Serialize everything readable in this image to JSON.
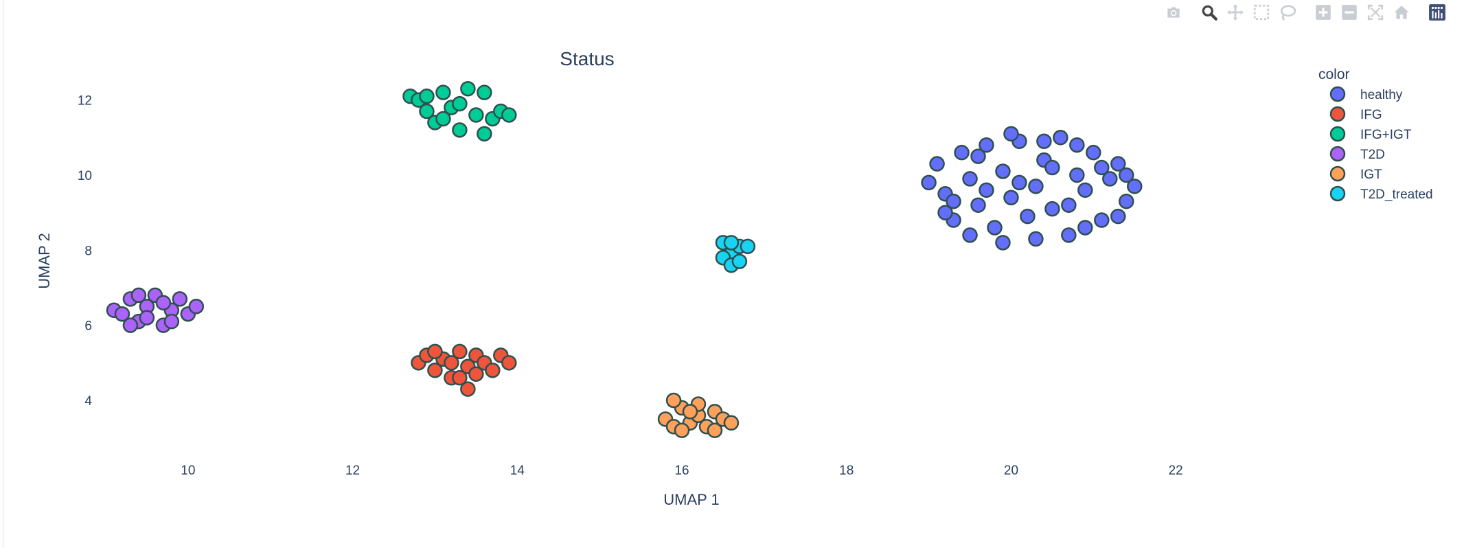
{
  "modebar": {
    "buttons": [
      {
        "name": "camera-icon",
        "label": "Download plot as a png"
      },
      {
        "name": "zoom-icon",
        "label": "Zoom"
      },
      {
        "name": "pan-icon",
        "label": "Pan"
      },
      {
        "name": "box-select-icon",
        "label": "Box Select"
      },
      {
        "name": "lasso-select-icon",
        "label": "Lasso Select"
      },
      {
        "name": "zoom-in-icon",
        "label": "Zoom in"
      },
      {
        "name": "zoom-out-icon",
        "label": "Zoom out"
      },
      {
        "name": "autoscale-icon",
        "label": "Autoscale"
      },
      {
        "name": "reset-axes-icon",
        "label": "Reset axes"
      },
      {
        "name": "plotly-logo-icon",
        "label": "Produced with Plotly"
      }
    ],
    "icon_color": "#c9cdd4",
    "active_color": "#444444"
  },
  "chart_data": {
    "type": "scatter",
    "title": "Status",
    "xlabel": "UMAP 1",
    "ylabel": "UMAP 2",
    "xlim": [
      8.8,
      23.4
    ],
    "ylim": [
      2.5,
      13.2
    ],
    "xticks": [
      10,
      12,
      14,
      16,
      18,
      20,
      22
    ],
    "yticks": [
      4,
      6,
      8,
      10,
      12
    ],
    "grid": false,
    "legend": {
      "title": "color",
      "position": "top-right"
    },
    "marker_outline": "#2f4f4f",
    "series": [
      {
        "name": "healthy",
        "color": "#636efa",
        "points": [
          [
            19.0,
            9.8
          ],
          [
            19.1,
            10.3
          ],
          [
            19.2,
            9.5
          ],
          [
            19.3,
            8.8
          ],
          [
            19.4,
            10.6
          ],
          [
            19.5,
            9.9
          ],
          [
            19.6,
            9.2
          ],
          [
            19.7,
            10.8
          ],
          [
            19.8,
            8.6
          ],
          [
            19.9,
            10.1
          ],
          [
            20.0,
            9.4
          ],
          [
            20.1,
            10.9
          ],
          [
            20.2,
            8.9
          ],
          [
            20.3,
            9.7
          ],
          [
            20.4,
            10.4
          ],
          [
            20.5,
            9.1
          ],
          [
            20.6,
            11.0
          ],
          [
            20.7,
            8.4
          ],
          [
            20.8,
            10.0
          ],
          [
            20.9,
            9.6
          ],
          [
            21.0,
            10.6
          ],
          [
            21.1,
            8.8
          ],
          [
            21.2,
            9.9
          ],
          [
            21.3,
            10.3
          ],
          [
            21.4,
            9.3
          ],
          [
            19.3,
            9.3
          ],
          [
            19.5,
            8.4
          ],
          [
            19.7,
            9.6
          ],
          [
            19.9,
            8.2
          ],
          [
            20.1,
            9.8
          ],
          [
            20.3,
            8.3
          ],
          [
            20.5,
            10.2
          ],
          [
            20.7,
            9.2
          ],
          [
            20.9,
            8.6
          ],
          [
            21.1,
            10.2
          ],
          [
            21.3,
            8.9
          ],
          [
            21.5,
            9.7
          ],
          [
            19.6,
            10.5
          ],
          [
            20.0,
            11.1
          ],
          [
            20.4,
            10.9
          ],
          [
            20.8,
            10.8
          ],
          [
            19.2,
            9.0
          ],
          [
            21.4,
            10.0
          ]
        ]
      },
      {
        "name": "IFG",
        "color": "#ef553b",
        "points": [
          [
            12.8,
            5.0
          ],
          [
            12.9,
            5.2
          ],
          [
            13.0,
            4.8
          ],
          [
            13.1,
            5.1
          ],
          [
            13.2,
            4.6
          ],
          [
            13.3,
            5.3
          ],
          [
            13.4,
            4.9
          ],
          [
            13.5,
            5.2
          ],
          [
            13.6,
            5.0
          ],
          [
            13.7,
            4.8
          ],
          [
            13.8,
            5.2
          ],
          [
            13.9,
            5.0
          ],
          [
            13.4,
            4.3
          ],
          [
            13.3,
            4.6
          ],
          [
            13.0,
            5.3
          ],
          [
            13.2,
            5.0
          ],
          [
            13.5,
            4.7
          ]
        ]
      },
      {
        "name": "IFG+IGT",
        "color": "#00cc96",
        "points": [
          [
            12.7,
            12.1
          ],
          [
            12.8,
            12.0
          ],
          [
            12.9,
            11.7
          ],
          [
            13.0,
            11.4
          ],
          [
            13.1,
            12.2
          ],
          [
            13.2,
            11.8
          ],
          [
            13.3,
            11.2
          ],
          [
            13.4,
            12.3
          ],
          [
            13.5,
            11.6
          ],
          [
            13.6,
            11.1
          ],
          [
            13.7,
            11.5
          ],
          [
            13.8,
            11.7
          ],
          [
            13.6,
            12.2
          ],
          [
            13.3,
            11.9
          ],
          [
            13.1,
            11.5
          ],
          [
            12.9,
            12.1
          ],
          [
            13.9,
            11.6
          ]
        ]
      },
      {
        "name": "T2D",
        "color": "#ab63fa",
        "points": [
          [
            9.1,
            6.4
          ],
          [
            9.2,
            6.3
          ],
          [
            9.3,
            6.7
          ],
          [
            9.4,
            6.1
          ],
          [
            9.5,
            6.5
          ],
          [
            9.6,
            6.8
          ],
          [
            9.7,
            6.0
          ],
          [
            9.8,
            6.4
          ],
          [
            9.9,
            6.7
          ],
          [
            10.0,
            6.3
          ],
          [
            10.1,
            6.5
          ],
          [
            9.5,
            6.2
          ],
          [
            9.3,
            6.0
          ],
          [
            9.8,
            6.1
          ],
          [
            9.4,
            6.8
          ],
          [
            9.7,
            6.6
          ]
        ]
      },
      {
        "name": "IGT",
        "color": "#ffa15a",
        "points": [
          [
            15.8,
            3.5
          ],
          [
            15.9,
            3.3
          ],
          [
            16.0,
            3.8
          ],
          [
            16.1,
            3.4
          ],
          [
            16.2,
            3.6
          ],
          [
            16.3,
            3.3
          ],
          [
            16.4,
            3.7
          ],
          [
            16.5,
            3.5
          ],
          [
            16.6,
            3.4
          ],
          [
            16.0,
            3.2
          ],
          [
            16.2,
            3.9
          ],
          [
            15.9,
            4.0
          ],
          [
            16.4,
            3.2
          ],
          [
            16.1,
            3.7
          ]
        ]
      },
      {
        "name": "T2D_treated",
        "color": "#19d3f3",
        "points": [
          [
            16.5,
            8.2
          ],
          [
            16.6,
            7.9
          ],
          [
            16.7,
            8.1
          ],
          [
            16.5,
            7.8
          ],
          [
            16.6,
            7.6
          ],
          [
            16.7,
            7.7
          ],
          [
            16.8,
            8.1
          ],
          [
            16.6,
            8.2
          ]
        ]
      }
    ]
  }
}
